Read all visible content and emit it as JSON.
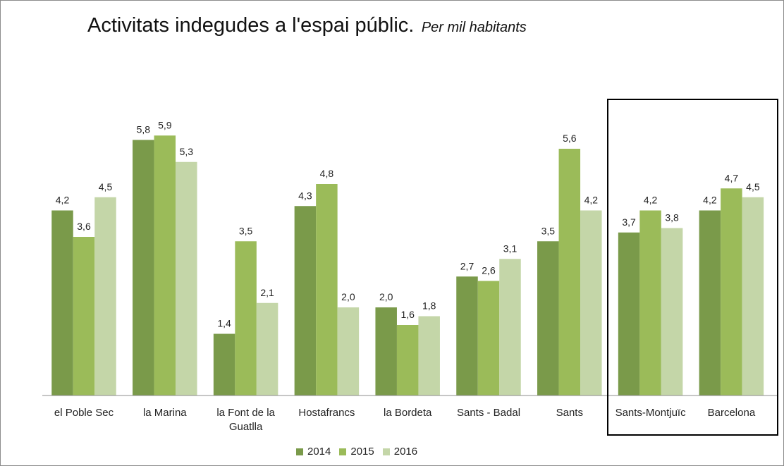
{
  "chart_data": {
    "type": "bar",
    "title": "Activitats indegudes a l'espai públic.",
    "subtitle": "Per mil habitants",
    "categories": [
      "el Poble Sec",
      "la Marina",
      "la Font de la Guatlla",
      "Hostafrancs",
      "la Bordeta",
      "Sants - Badal",
      "Sants",
      "Sants-Montjuïc",
      "Barcelona"
    ],
    "category_lines": [
      [
        "el Poble Sec"
      ],
      [
        "la Marina"
      ],
      [
        "la Font de la",
        "Guatlla"
      ],
      [
        "Hostafrancs"
      ],
      [
        "la Bordeta"
      ],
      [
        "Sants - Badal"
      ],
      [
        "Sants"
      ],
      [
        "Sants-Montjuïc"
      ],
      [
        "Barcelona"
      ]
    ],
    "series": [
      {
        "name": "2014",
        "color": "#7a9a4a",
        "values": [
          4.2,
          5.8,
          1.4,
          4.3,
          2.0,
          2.7,
          3.5,
          3.7,
          4.2
        ],
        "labels": [
          "4,2",
          "5,8",
          "1,4",
          "4,3",
          "2,0",
          "2,7",
          "3,5",
          "3,7",
          "4,2"
        ]
      },
      {
        "name": "2015",
        "color": "#9bbb59",
        "values": [
          3.6,
          5.9,
          3.5,
          4.8,
          1.6,
          2.6,
          5.6,
          4.2,
          4.7
        ],
        "labels": [
          "3,6",
          "5,9",
          "3,5",
          "4,8",
          "1,6",
          "2,6",
          "5,6",
          "4,2",
          "4,7"
        ]
      },
      {
        "name": "2016",
        "color": "#c4d6a8",
        "values": [
          4.5,
          5.3,
          2.1,
          2.0,
          1.8,
          3.1,
          4.2,
          3.8,
          4.5
        ],
        "labels": [
          "4,5",
          "5,3",
          "2,1",
          "2,0",
          "1,8",
          "3,1",
          "4,2",
          "3,8",
          "4,5"
        ]
      }
    ],
    "ylim": [
      0,
      7.6
    ],
    "grid": false,
    "legend_position": "bottom",
    "highlighted_categories": [
      "Sants-Montjuïc",
      "Barcelona"
    ]
  }
}
